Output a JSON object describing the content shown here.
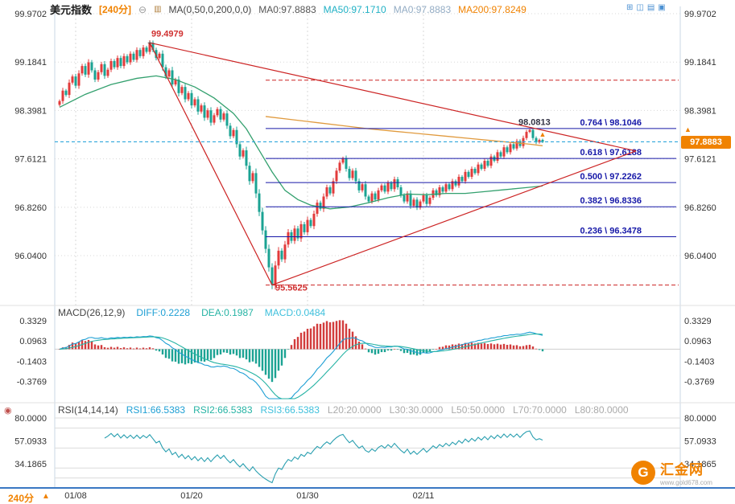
{
  "header": {
    "symbol": "美元指数",
    "period": "[240分]",
    "icons": {
      "collapse": "⊖",
      "style": "▥"
    },
    "ma_settings": "MA(0,50,0,200,0,0)",
    "ma_values": [
      {
        "text": "MA0:97.8883",
        "color": "#555555"
      },
      {
        "text": "MA50:97.1710",
        "color": "#1FB0C4"
      },
      {
        "text": "MA0:97.8883",
        "color": "#93ACC4"
      },
      {
        "text": "MA200:97.8249",
        "color": "#F08200"
      }
    ]
  },
  "toolbar_icons": [
    {
      "glyph": "⊞"
    },
    {
      "glyph": "◫"
    },
    {
      "glyph": "▤"
    },
    {
      "glyph": "▣"
    }
  ],
  "macd_header": {
    "title": "MACD(26,12,9)",
    "items": [
      {
        "text": "DIFF:0.2228",
        "color": "#1E9FD4"
      },
      {
        "text": "DEA:0.1987",
        "color": "#26B3A4"
      },
      {
        "text": "MACD:0.0484",
        "color": "#3FC0DC"
      }
    ]
  },
  "rsi_header": {
    "icon": "◉",
    "title": "RSI(14,14,14)",
    "items": [
      {
        "text": "RSI1:66.5383",
        "color": "#1E9FD4"
      },
      {
        "text": "RSI2:66.5383",
        "color": "#26B3A4"
      },
      {
        "text": "RSI3:66.5383",
        "color": "#3FC0DC"
      },
      {
        "text": "L20:20.0000",
        "color": "#AAAAAA"
      },
      {
        "text": "L30:30.0000",
        "color": "#AAAAAA"
      },
      {
        "text": "L50:50.0000",
        "color": "#AAAAAA"
      },
      {
        "text": "L70:70.0000",
        "color": "#AAAAAA"
      },
      {
        "text": "L80:80.0000",
        "color": "#AAAAAA"
      }
    ]
  },
  "bottom": {
    "period": "240分",
    "arrow": "▲"
  },
  "price_badge": "97.8883",
  "price_arrow": "▲",
  "logo": {
    "monogram": "G",
    "text": "汇金网",
    "subtext": "www.gold678.com"
  },
  "colors": {
    "accent_orange": "#F08200",
    "up": "#E23B3B",
    "down": "#1BA393",
    "ma50": "#33A06E",
    "ma200": "#E09A3E",
    "fib": "#1618A8",
    "trend": "#CC2323",
    "price_line": "#2FA7DC",
    "badge_bg": "#F08200",
    "grid": "#D8D8D8",
    "axis_text": "#333333",
    "macd_diff": "#1E9FD4",
    "macd_dea": "#26B3A4",
    "hist_up": "#D23C3C",
    "hist_down": "#1BA393",
    "rsi_line": "#2A9FB0",
    "panel_border": "#C9D7E6",
    "bottom_line": "#3A78C3"
  },
  "chart_data": [
    {
      "type": "candlestick",
      "title": "美元指数 240分",
      "y_axis": {
        "labels": [
          "99.9702",
          "99.1841",
          "98.3981",
          "97.6121",
          "96.8260",
          "96.0400"
        ],
        "values": [
          99.9702,
          99.1841,
          98.3981,
          97.6121,
          96.826,
          96.04
        ]
      },
      "ylim": [
        95.23,
        100.09
      ],
      "x_dates": {
        "labels": [
          "01/08",
          "01/20",
          "01/30",
          "02/11"
        ],
        "indices": [
          5,
          41,
          77,
          113
        ]
      },
      "closes": [
        98.55,
        98.72,
        98.65,
        98.85,
        98.95,
        98.8,
        99.0,
        99.12,
        98.98,
        99.18,
        99.05,
        98.9,
        99.02,
        99.15,
        98.96,
        99.06,
        99.2,
        99.1,
        99.25,
        99.12,
        99.28,
        99.18,
        99.32,
        99.22,
        99.38,
        99.28,
        99.42,
        99.35,
        99.4979,
        99.38,
        99.25,
        99.32,
        99.1,
        98.95,
        99.05,
        98.82,
        98.9,
        98.68,
        98.78,
        98.58,
        98.68,
        98.48,
        98.58,
        98.38,
        98.48,
        98.28,
        98.4,
        98.2,
        98.32,
        98.42,
        98.25,
        98.35,
        98.15,
        97.98,
        98.08,
        97.85,
        97.65,
        97.75,
        97.5,
        97.25,
        97.38,
        97.05,
        96.75,
        96.45,
        96.15,
        95.85,
        95.5625,
        95.88,
        96.12,
        95.98,
        96.22,
        96.42,
        96.28,
        96.48,
        96.32,
        96.55,
        96.42,
        96.62,
        96.52,
        96.72,
        96.9,
        96.8,
        97.0,
        97.15,
        97.05,
        97.25,
        97.42,
        97.55,
        97.62,
        97.45,
        97.3,
        97.42,
        97.25,
        97.1,
        97.2,
        97.0,
        96.92,
        97.05,
        96.95,
        97.1,
        97.18,
        97.08,
        97.22,
        97.12,
        97.28,
        97.15,
        97.02,
        96.92,
        97.05,
        96.85,
        96.95,
        96.82,
        96.92,
        97.02,
        96.88,
        96.98,
        97.1,
        97.02,
        97.15,
        97.08,
        97.2,
        97.12,
        97.25,
        97.18,
        97.32,
        97.25,
        97.4,
        97.32,
        97.45,
        97.38,
        97.52,
        97.45,
        97.58,
        97.5,
        97.65,
        97.58,
        97.72,
        97.65,
        97.8,
        97.72,
        97.85,
        97.78,
        97.9,
        97.82,
        97.95,
        98.05,
        98.0813,
        97.95,
        97.88,
        97.92,
        97.8883
      ],
      "ma50_points": [
        [
          0,
          98.45
        ],
        [
          8,
          98.66
        ],
        [
          16,
          98.82
        ],
        [
          24,
          98.92
        ],
        [
          30,
          98.96
        ],
        [
          36,
          98.9
        ],
        [
          42,
          98.78
        ],
        [
          48,
          98.6
        ],
        [
          54,
          98.35
        ],
        [
          58,
          98.1
        ],
        [
          62,
          97.75
        ],
        [
          66,
          97.4
        ],
        [
          70,
          97.1
        ],
        [
          74,
          96.95
        ],
        [
          78,
          96.86
        ],
        [
          84,
          96.8
        ],
        [
          90,
          96.83
        ],
        [
          96,
          96.9
        ],
        [
          102,
          96.98
        ],
        [
          108,
          97.04
        ],
        [
          114,
          97.03
        ],
        [
          120,
          97.05
        ],
        [
          126,
          97.05
        ],
        [
          132,
          97.08
        ],
        [
          138,
          97.11
        ],
        [
          144,
          97.14
        ],
        [
          150,
          97.171
        ]
      ],
      "ma200_points": [
        [
          64,
          98.3
        ],
        [
          72,
          98.25
        ],
        [
          80,
          98.2
        ],
        [
          88,
          98.15
        ],
        [
          96,
          98.1
        ],
        [
          104,
          98.06
        ],
        [
          112,
          98.02
        ],
        [
          120,
          97.98
        ],
        [
          128,
          97.94
        ],
        [
          134,
          97.91
        ],
        [
          140,
          97.88
        ],
        [
          146,
          97.85
        ],
        [
          150,
          97.8249
        ]
      ],
      "fib_bounds": {
        "high": 98.89,
        "low": 95.5625,
        "start_index": 64
      },
      "fib_levels": [
        {
          "label": "0.764 \\ 98.1046",
          "price": 98.1046
        },
        {
          "label": "0.618 \\ 97.6188",
          "price": 97.6188
        },
        {
          "label": "0.500 \\ 97.2262",
          "price": 97.2262
        },
        {
          "label": "0.382 \\ 96.8336",
          "price": 96.8336
        },
        {
          "label": "0.236 \\ 96.3478",
          "price": 96.3478
        }
      ],
      "trendlines": [
        {
          "from": [
            28,
            99.4979
          ],
          "to": [
            179,
            97.74
          ]
        },
        {
          "from": [
            66,
            95.5625
          ],
          "to": [
            179,
            97.74
          ]
        },
        {
          "from": [
            28,
            99.4979
          ],
          "to": [
            66,
            95.5625
          ]
        }
      ],
      "current_price": 97.8883,
      "annotations": [
        {
          "text": "99.4979",
          "i": 28,
          "price": 99.6,
          "dx": 2,
          "color": "#D03030"
        },
        {
          "text": "95.5625",
          "i": 66,
          "price": 95.47,
          "dx": 4,
          "color": "#D03030"
        },
        {
          "text": "98.0813",
          "i": 146,
          "price": 98.16,
          "dx": -14,
          "color": "#333344"
        }
      ],
      "markers": [
        {
          "glyph": "+",
          "i": 28,
          "price": 99.45,
          "color": "#444444",
          "size": 10
        },
        {
          "glyph": "▲",
          "i": 150,
          "price": 97.97,
          "color": "#F08200",
          "size": 9
        }
      ]
    },
    {
      "type": "macd",
      "params": {
        "slow": 26,
        "fast": 12,
        "signal": 9
      },
      "current": {
        "diff": 0.2228,
        "dea": 0.1987,
        "macd": 0.0484
      },
      "y_axis": {
        "labels": [
          "0.3329",
          "0.0963",
          "-0.1403",
          "-0.3769"
        ],
        "values": [
          0.3329,
          0.0963,
          -0.1403,
          -0.3769
        ]
      }
    },
    {
      "type": "rsi",
      "period": 14,
      "current": 66.5383,
      "levels": [
        80,
        70,
        50,
        30,
        20
      ],
      "y_axis": {
        "labels": [
          "80.0000",
          "57.0933",
          "34.1865"
        ],
        "values": [
          80,
          57.0933,
          34.1865
        ]
      }
    }
  ]
}
